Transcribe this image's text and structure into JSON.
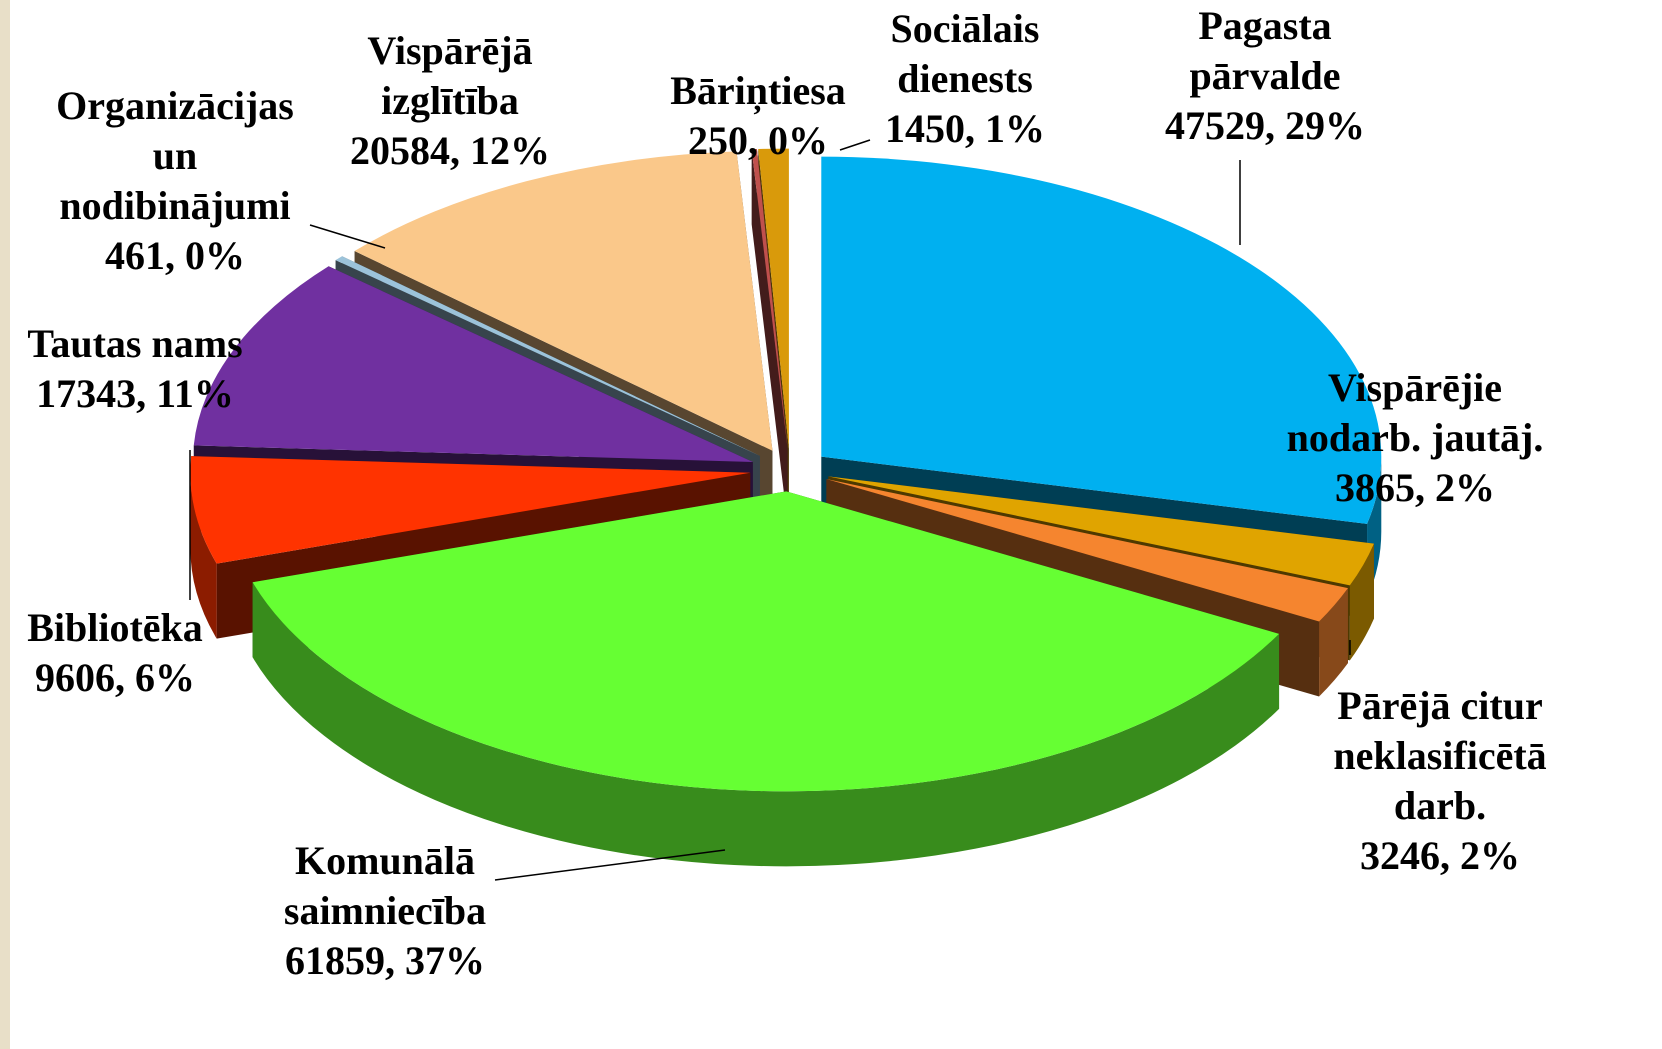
{
  "chart_data": {
    "type": "pie",
    "categories": [
      [
        "Pagasta",
        "pārvalde"
      ],
      [
        "Vispārējie",
        "nodarb. jautāj."
      ],
      [
        "Pārējā citur",
        "neklasificētā",
        "darb."
      ],
      [
        "Komunālā",
        "saimniecība"
      ],
      [
        "Bibliotēka"
      ],
      [
        "Tautas nams"
      ],
      [
        "Organizācijas",
        "un",
        "nodibinājumi"
      ],
      [
        "Vispārējā",
        "izglītība"
      ],
      [
        "Bāriņtiesa"
      ],
      [
        "Sociālais",
        "dienests"
      ]
    ],
    "values": [
      47529,
      3865,
      3246,
      61859,
      9606,
      17343,
      461,
      20584,
      250,
      1450
    ],
    "value_labels": [
      "47529, 29%",
      "3865, 2%",
      "3246, 2%",
      "61859, 37%",
      "9606, 6%",
      "17343, 11%",
      "461, 0%",
      "20584, 12%",
      "250, 0%",
      "1450, 1%"
    ],
    "colors": [
      "#00b0f0",
      "#e0a400",
      "#f5852f",
      "#66ff33",
      "#ff3300",
      "#7030a0",
      "#9cc3da",
      "#fac88a",
      "#c0504d",
      "#d99a0b"
    ]
  }
}
